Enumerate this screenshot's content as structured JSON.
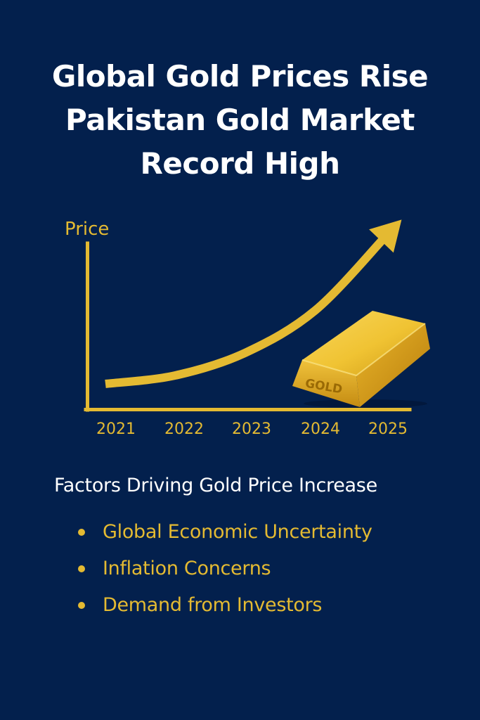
{
  "poster": {
    "title_lines": [
      "Global Gold Prices Rise",
      "Pakistan Gold Market",
      "Record High"
    ],
    "factors": {
      "heading": "Factors Driving Gold Price Increase",
      "items": [
        "Global Economic Uncertainty",
        "Inflation Concerns",
        "Demand from Investors"
      ]
    },
    "gold_bar_label": "GOLD",
    "colors": {
      "background": "#03204d",
      "accent_gold": "#e4ba32",
      "text_white": "#ffffff"
    }
  },
  "chart_data": {
    "type": "line",
    "ylabel": "Price",
    "xlabel": "",
    "x": [
      "2021",
      "2022",
      "2023",
      "2024",
      "2025"
    ],
    "series": [
      {
        "values": [
          1,
          1.3,
          2.1,
          3.6,
          6.2
        ]
      }
    ],
    "trend": "rising",
    "arrow_at_end": true,
    "grid": false,
    "legend": "none"
  }
}
